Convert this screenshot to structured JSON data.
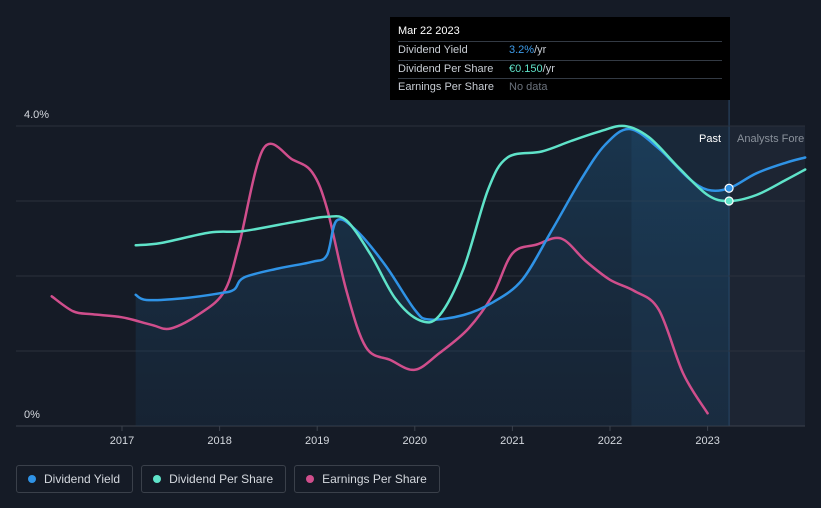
{
  "tooltip": {
    "date": "Mar 22 2023",
    "rows": [
      {
        "label": "Dividend Yield",
        "value": "3.2%",
        "unit": " /yr"
      },
      {
        "label": "Dividend Per Share",
        "value": "€0.150",
        "unit": " /yr"
      },
      {
        "label": "Earnings Per Share",
        "value": "No data",
        "unit": ""
      }
    ]
  },
  "region_labels": {
    "past": "Past",
    "forecast": "Analysts Fore"
  },
  "legend": [
    {
      "label": "Dividend Yield",
      "color": "#2f93e6"
    },
    {
      "label": "Dividend Per Share",
      "color": "#5fe3c9"
    },
    {
      "label": "Earnings Per Share",
      "color": "#d04e8c"
    }
  ],
  "colors": {
    "yield": "#2f93e6",
    "dps": "#5fe3c9",
    "eps": "#d04e8c",
    "background": "#151b26"
  },
  "chart_data": {
    "type": "line",
    "x_ticks": [
      "2017",
      "2018",
      "2019",
      "2020",
      "2021",
      "2022",
      "2023"
    ],
    "y_ticks": [
      "0%",
      "4.0%"
    ],
    "ylim": [
      0,
      4.0
    ],
    "xlim": [
      2016.0,
      2024.0
    ],
    "past_end": 2023.22,
    "series": [
      {
        "name": "Dividend Yield",
        "color": "#2f93e6",
        "points": [
          [
            2017.14,
            1.75
          ],
          [
            2017.25,
            1.68
          ],
          [
            2017.6,
            1.7
          ],
          [
            2018.0,
            1.77
          ],
          [
            2018.15,
            1.82
          ],
          [
            2018.25,
            1.98
          ],
          [
            2018.6,
            2.1
          ],
          [
            2018.95,
            2.19
          ],
          [
            2019.1,
            2.28
          ],
          [
            2019.2,
            2.74
          ],
          [
            2019.4,
            2.61
          ],
          [
            2019.7,
            2.14
          ],
          [
            2020.0,
            1.55
          ],
          [
            2020.15,
            1.42
          ],
          [
            2020.5,
            1.48
          ],
          [
            2020.8,
            1.65
          ],
          [
            2021.1,
            1.95
          ],
          [
            2021.4,
            2.6
          ],
          [
            2021.7,
            3.28
          ],
          [
            2021.95,
            3.75
          ],
          [
            2022.2,
            3.96
          ],
          [
            2022.5,
            3.7
          ],
          [
            2022.8,
            3.31
          ],
          [
            2023.0,
            3.15
          ],
          [
            2023.22,
            3.17
          ],
          [
            2023.5,
            3.37
          ],
          [
            2023.8,
            3.51
          ],
          [
            2024.0,
            3.58
          ]
        ]
      },
      {
        "name": "Dividend Per Share",
        "color": "#5fe3c9",
        "points": [
          [
            2017.14,
            2.41
          ],
          [
            2017.4,
            2.44
          ],
          [
            2017.9,
            2.58
          ],
          [
            2018.25,
            2.6
          ],
          [
            2018.8,
            2.73
          ],
          [
            2019.1,
            2.79
          ],
          [
            2019.3,
            2.74
          ],
          [
            2019.55,
            2.28
          ],
          [
            2019.8,
            1.7
          ],
          [
            2020.05,
            1.41
          ],
          [
            2020.25,
            1.47
          ],
          [
            2020.5,
            2.1
          ],
          [
            2020.75,
            3.15
          ],
          [
            2020.95,
            3.58
          ],
          [
            2021.3,
            3.66
          ],
          [
            2021.6,
            3.8
          ],
          [
            2021.9,
            3.93
          ],
          [
            2022.15,
            4.0
          ],
          [
            2022.4,
            3.85
          ],
          [
            2022.7,
            3.45
          ],
          [
            2023.0,
            3.08
          ],
          [
            2023.22,
            3.0
          ],
          [
            2023.5,
            3.08
          ],
          [
            2023.8,
            3.28
          ],
          [
            2024.0,
            3.42
          ]
        ]
      },
      {
        "name": "Earnings Per Share",
        "color": "#d04e8c",
        "points": [
          [
            2016.28,
            1.73
          ],
          [
            2016.5,
            1.53
          ],
          [
            2016.7,
            1.49
          ],
          [
            2017.0,
            1.45
          ],
          [
            2017.3,
            1.35
          ],
          [
            2017.5,
            1.3
          ],
          [
            2017.8,
            1.5
          ],
          [
            2018.05,
            1.8
          ],
          [
            2018.2,
            2.42
          ],
          [
            2018.45,
            3.7
          ],
          [
            2018.75,
            3.55
          ],
          [
            2018.95,
            3.38
          ],
          [
            2019.1,
            2.9
          ],
          [
            2019.3,
            1.8
          ],
          [
            2019.5,
            1.05
          ],
          [
            2019.75,
            0.88
          ],
          [
            2020.0,
            0.75
          ],
          [
            2020.25,
            0.97
          ],
          [
            2020.55,
            1.3
          ],
          [
            2020.8,
            1.75
          ],
          [
            2021.0,
            2.3
          ],
          [
            2021.25,
            2.42
          ],
          [
            2021.5,
            2.5
          ],
          [
            2021.75,
            2.2
          ],
          [
            2022.0,
            1.95
          ],
          [
            2022.25,
            1.8
          ],
          [
            2022.5,
            1.55
          ],
          [
            2022.75,
            0.7
          ],
          [
            2023.0,
            0.17
          ]
        ]
      }
    ]
  }
}
